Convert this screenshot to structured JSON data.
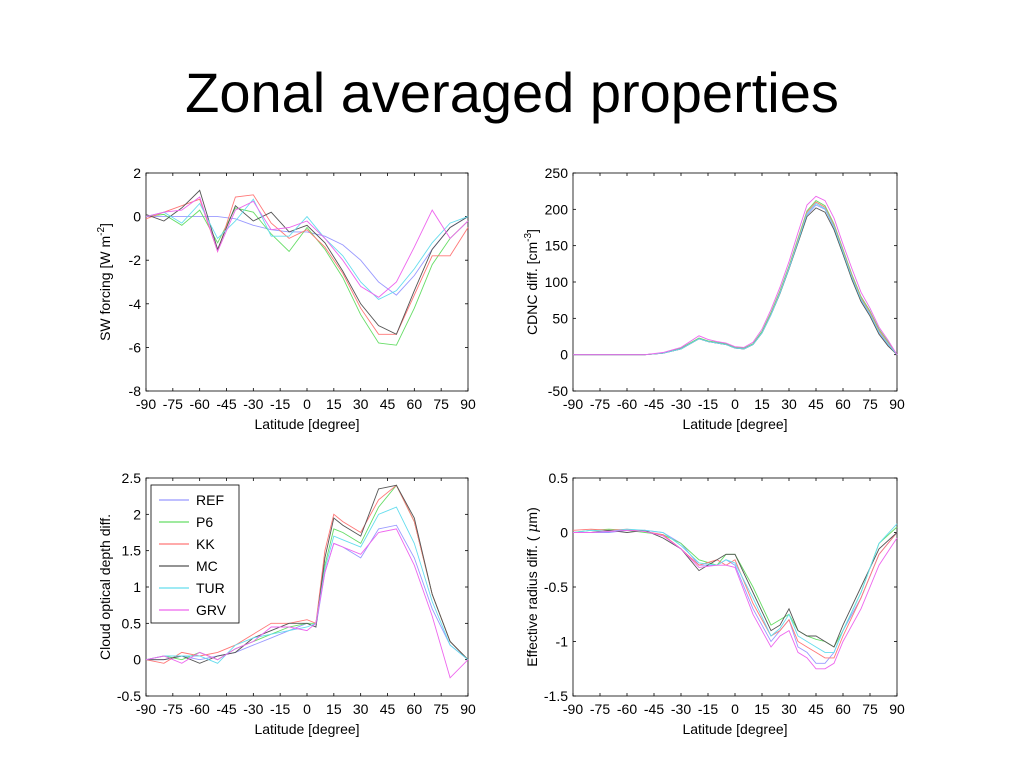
{
  "slide": {
    "title": "Zonal averaged properties"
  },
  "colors": {
    "REF": "#9999ff",
    "P6": "#66dd66",
    "KK": "#ff7777",
    "MC": "#555555",
    "TUR": "#66ddee",
    "GRV": "#ee66ee"
  },
  "chart_data": [
    {
      "type": "line",
      "xlabel": "Latitude [degree]",
      "ylabel": "SW forcing [W m",
      "ylabel_sup": "-2",
      "ylabel_end": "]",
      "xlim": [
        -90,
        90
      ],
      "ylim": [
        -8,
        2
      ],
      "xticks": [
        -90,
        -75,
        -60,
        -45,
        -30,
        -15,
        0,
        15,
        30,
        45,
        60,
        75,
        90
      ],
      "yticks": [
        -8,
        -6,
        -4,
        -2,
        0,
        2
      ],
      "x": [
        -90,
        -80,
        -70,
        -60,
        -50,
        -40,
        -30,
        -20,
        -10,
        0,
        10,
        20,
        30,
        40,
        50,
        60,
        70,
        80,
        90
      ],
      "series": [
        {
          "name": "REF",
          "values": [
            0,
            0,
            0,
            0,
            0,
            -0.1,
            -0.4,
            -0.6,
            -0.7,
            -0.7,
            -0.9,
            -1.3,
            -2.0,
            -3.0,
            -3.6,
            -2.7,
            -1.5,
            -0.5,
            0
          ]
        },
        {
          "name": "P6",
          "values": [
            0,
            0.1,
            -0.4,
            0.3,
            -1.2,
            0.4,
            0.2,
            -0.8,
            -1.6,
            -0.5,
            -1.5,
            -2.8,
            -4.5,
            -5.8,
            -5.9,
            -4.2,
            -2.2,
            -1.0,
            -0.2
          ]
        },
        {
          "name": "KK",
          "values": [
            -0.1,
            0.2,
            0.5,
            0.8,
            -1.6,
            0.9,
            1.0,
            -0.3,
            -1.0,
            -0.6,
            -1.4,
            -2.6,
            -4.2,
            -5.4,
            -5.4,
            -3.6,
            -1.8,
            -1.8,
            -0.5
          ]
        },
        {
          "name": "MC",
          "values": [
            0.1,
            -0.2,
            0.4,
            1.2,
            -1.5,
            0.5,
            -0.2,
            0.2,
            -0.7,
            -0.4,
            -1.2,
            -2.5,
            -4.0,
            -5.0,
            -5.4,
            -3.4,
            -1.5,
            -0.5,
            0
          ]
        },
        {
          "name": "TUR",
          "values": [
            0,
            0.2,
            -0.3,
            0.6,
            -1.0,
            -0.2,
            0.8,
            -0.9,
            -0.9,
            0,
            -1.0,
            -1.8,
            -3.0,
            -3.8,
            -3.4,
            -2.4,
            -1.2,
            -0.3,
            0
          ]
        },
        {
          "name": "GRV",
          "values": [
            0,
            0.2,
            0.3,
            0.9,
            -1.6,
            0.3,
            0.7,
            -0.6,
            -0.5,
            -0.2,
            -1.0,
            -2.0,
            -3.2,
            -3.7,
            -3.0,
            -1.4,
            0.3,
            -1.0,
            -0.2
          ]
        }
      ]
    },
    {
      "type": "line",
      "xlabel": "Latitude [degree]",
      "ylabel": "CDNC diff. [cm",
      "ylabel_sup": "-3",
      "ylabel_end": "]",
      "xlim": [
        -90,
        90
      ],
      "ylim": [
        -50,
        250
      ],
      "xticks": [
        -90,
        -75,
        -60,
        -45,
        -30,
        -15,
        0,
        15,
        30,
        45,
        60,
        75,
        90
      ],
      "yticks": [
        -50,
        0,
        50,
        100,
        150,
        200,
        250
      ],
      "x": [
        -90,
        -80,
        -70,
        -60,
        -50,
        -40,
        -30,
        -20,
        -15,
        -10,
        -5,
        0,
        5,
        10,
        15,
        20,
        25,
        30,
        35,
        40,
        45,
        50,
        55,
        60,
        65,
        70,
        75,
        80,
        85,
        90
      ],
      "series": [
        {
          "name": "REF",
          "values": [
            0,
            0,
            0,
            0,
            0,
            2,
            8,
            22,
            18,
            16,
            14,
            9,
            8,
            14,
            30,
            55,
            85,
            118,
            155,
            192,
            206,
            200,
            175,
            140,
            105,
            75,
            55,
            30,
            14,
            0
          ]
        },
        {
          "name": "P6",
          "values": [
            0,
            0,
            0,
            0,
            0,
            2,
            9,
            23,
            19,
            17,
            15,
            10,
            9,
            15,
            32,
            58,
            88,
            122,
            160,
            198,
            212,
            205,
            180,
            145,
            110,
            80,
            60,
            35,
            18,
            0
          ]
        },
        {
          "name": "KK",
          "values": [
            0,
            0,
            0,
            0,
            0,
            2,
            8,
            22,
            18,
            16,
            14,
            9,
            8,
            14,
            30,
            56,
            86,
            120,
            158,
            196,
            210,
            203,
            178,
            143,
            108,
            78,
            58,
            33,
            16,
            0
          ]
        },
        {
          "name": "MC",
          "values": [
            0,
            0,
            0,
            0,
            0,
            2,
            8,
            22,
            18,
            16,
            14,
            9,
            8,
            14,
            30,
            55,
            84,
            118,
            154,
            190,
            202,
            196,
            172,
            138,
            103,
            73,
            53,
            28,
            12,
            0
          ]
        },
        {
          "name": "TUR",
          "values": [
            0,
            0,
            0,
            0,
            0,
            2,
            8,
            22,
            18,
            16,
            14,
            9,
            8,
            14,
            30,
            55,
            85,
            119,
            156,
            194,
            208,
            201,
            176,
            141,
            106,
            76,
            56,
            31,
            15,
            0
          ]
        },
        {
          "name": "GRV",
          "values": [
            0,
            0,
            0,
            0,
            0,
            3,
            10,
            26,
            21,
            18,
            16,
            11,
            10,
            17,
            35,
            62,
            93,
            128,
            168,
            206,
            218,
            212,
            188,
            152,
            118,
            86,
            64,
            38,
            20,
            0
          ]
        }
      ]
    },
    {
      "type": "line",
      "xlabel": "Latitude [degree]",
      "ylabel": "Cloud optical depth diff.",
      "xlim": [
        -90,
        90
      ],
      "ylim": [
        -0.5,
        2.5
      ],
      "xticks": [
        -90,
        -75,
        -60,
        -45,
        -30,
        -15,
        0,
        15,
        30,
        45,
        60,
        75,
        90
      ],
      "yticks": [
        -0.5,
        0,
        0.5,
        1,
        1.5,
        2,
        2.5
      ],
      "legend": [
        "REF",
        "P6",
        "KK",
        "MC",
        "TUR",
        "GRV"
      ],
      "legend_position": "top-left",
      "x": [
        -90,
        -80,
        -70,
        -60,
        -50,
        -40,
        -30,
        -20,
        -10,
        0,
        5,
        10,
        15,
        20,
        30,
        40,
        50,
        60,
        70,
        80,
        90
      ],
      "series": [
        {
          "name": "REF",
          "values": [
            0,
            0,
            0.05,
            0,
            0.05,
            0.1,
            0.2,
            0.3,
            0.4,
            0.5,
            0.45,
            1.2,
            1.6,
            1.55,
            1.4,
            1.8,
            1.85,
            1.4,
            0.7,
            0.2,
            0
          ]
        },
        {
          "name": "P6",
          "values": [
            0,
            0.05,
            0,
            0.1,
            0,
            0.15,
            0.25,
            0.35,
            0.45,
            0.5,
            0.5,
            1.3,
            1.8,
            1.75,
            1.6,
            2.1,
            2.4,
            1.9,
            0.9,
            0.25,
            0
          ]
        },
        {
          "name": "KK",
          "values": [
            0,
            -0.05,
            0.1,
            0.05,
            0.1,
            0.2,
            0.35,
            0.5,
            0.5,
            0.55,
            0.5,
            1.5,
            2.0,
            1.9,
            1.75,
            2.2,
            2.4,
            1.9,
            0.9,
            0.25,
            0
          ]
        },
        {
          "name": "MC",
          "values": [
            0,
            0,
            0.05,
            -0.05,
            0.05,
            0.1,
            0.3,
            0.4,
            0.5,
            0.5,
            0.45,
            1.4,
            1.95,
            1.85,
            1.7,
            2.35,
            2.4,
            1.95,
            0.9,
            0.25,
            0
          ]
        },
        {
          "name": "TUR",
          "values": [
            0,
            0.05,
            0.05,
            0.05,
            -0.05,
            0.2,
            0.3,
            0.35,
            0.4,
            0.45,
            0.5,
            1.25,
            1.7,
            1.65,
            1.55,
            2.0,
            2.1,
            1.6,
            0.8,
            0.2,
            0
          ]
        },
        {
          "name": "GRV",
          "values": [
            0,
            0.05,
            -0.05,
            0.1,
            0,
            0.15,
            0.25,
            0.45,
            0.45,
            0.4,
            0.5,
            1.2,
            1.6,
            1.55,
            1.45,
            1.75,
            1.8,
            1.3,
            0.6,
            -0.25,
            0
          ]
        }
      ]
    },
    {
      "type": "line",
      "xlabel": "Latitude [degree]",
      "ylabel": "Effective radius diff. ( ",
      "ylabel_mu": "μ",
      "ylabel_end": "m)",
      "xlim": [
        -90,
        90
      ],
      "ylim": [
        -1.5,
        0.5
      ],
      "xticks": [
        -90,
        -75,
        -60,
        -45,
        -30,
        -15,
        0,
        15,
        30,
        45,
        60,
        75,
        90
      ],
      "yticks": [
        -1.5,
        -1,
        -0.5,
        0,
        0.5
      ],
      "x": [
        -90,
        -80,
        -70,
        -60,
        -50,
        -40,
        -30,
        -20,
        -10,
        -5,
        0,
        10,
        20,
        25,
        30,
        35,
        40,
        45,
        50,
        55,
        60,
        70,
        80,
        90
      ],
      "series": [
        {
          "name": "REF",
          "values": [
            0,
            0,
            0,
            0.02,
            0.02,
            0,
            -0.1,
            -0.3,
            -0.3,
            -0.25,
            -0.3,
            -0.7,
            -1.0,
            -0.9,
            -0.8,
            -1.05,
            -1.1,
            -1.2,
            -1.2,
            -1.1,
            -0.9,
            -0.6,
            -0.2,
            0
          ]
        },
        {
          "name": "P6",
          "values": [
            0,
            0.02,
            0.03,
            0.02,
            0,
            -0.02,
            -0.1,
            -0.25,
            -0.3,
            -0.2,
            -0.2,
            -0.5,
            -0.85,
            -0.8,
            -0.75,
            -0.9,
            -0.95,
            -0.98,
            -1.0,
            -1.05,
            -0.9,
            -0.55,
            -0.1,
            0.05
          ]
        },
        {
          "name": "KK",
          "values": [
            0.02,
            0.03,
            0.02,
            0.03,
            0.01,
            -0.02,
            -0.15,
            -0.3,
            -0.25,
            -0.3,
            -0.25,
            -0.65,
            -0.95,
            -0.9,
            -0.8,
            -1.0,
            -1.05,
            -1.1,
            -1.15,
            -1.15,
            -0.95,
            -0.6,
            -0.2,
            0
          ]
        },
        {
          "name": "MC",
          "values": [
            0,
            0,
            0.02,
            0,
            0.02,
            -0.05,
            -0.15,
            -0.35,
            -0.25,
            -0.2,
            -0.2,
            -0.55,
            -0.9,
            -0.85,
            -0.7,
            -0.9,
            -0.95,
            -0.95,
            -1.0,
            -1.05,
            -0.85,
            -0.5,
            -0.15,
            0
          ]
        },
        {
          "name": "TUR",
          "values": [
            0,
            0.02,
            0.01,
            0.03,
            0.02,
            0,
            -0.12,
            -0.28,
            -0.3,
            -0.25,
            -0.28,
            -0.6,
            -0.95,
            -0.88,
            -0.75,
            -0.95,
            -1.0,
            -1.05,
            -1.1,
            -1.1,
            -0.9,
            -0.55,
            -0.1,
            0.08
          ]
        },
        {
          "name": "GRV",
          "values": [
            0,
            0,
            0.01,
            0.02,
            0.01,
            -0.03,
            -0.15,
            -0.32,
            -0.3,
            -0.3,
            -0.32,
            -0.75,
            -1.05,
            -0.95,
            -0.9,
            -1.1,
            -1.15,
            -1.25,
            -1.25,
            -1.2,
            -1.0,
            -0.7,
            -0.3,
            -0.05
          ]
        }
      ]
    }
  ]
}
